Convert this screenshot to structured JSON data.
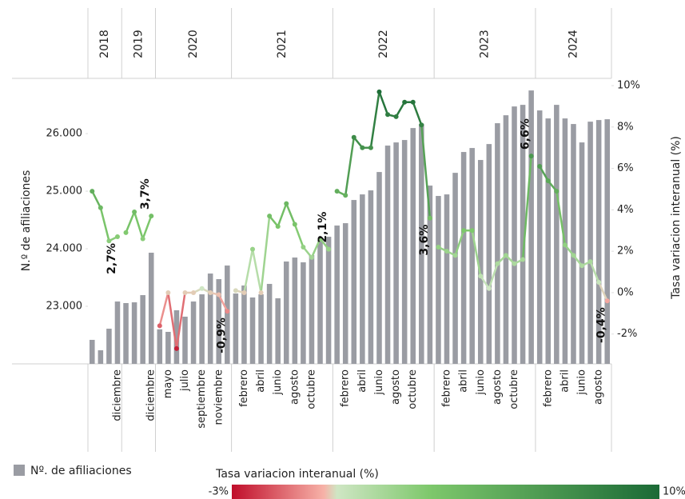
{
  "chart_data": {
    "type": "bar",
    "y_title": "N.º de afiliaciones",
    "groups": [
      {
        "label": "2018",
        "categories": [
          null,
          null,
          null,
          "diciembre"
        ]
      },
      {
        "label": "2019",
        "categories": [
          null,
          null,
          null,
          "diciembre"
        ]
      },
      {
        "label": "2020",
        "categories": [
          null,
          "mayo",
          null,
          "julio",
          null,
          "septiembre",
          null,
          "noviembre",
          null
        ]
      },
      {
        "label": "2021",
        "categories": [
          null,
          "febrero",
          null,
          "abril",
          null,
          "junio",
          null,
          "agosto",
          null,
          "octubre",
          null,
          null
        ]
      },
      {
        "label": "2022",
        "categories": [
          null,
          "febrero",
          null,
          "abril",
          null,
          "junio",
          null,
          "agosto",
          null,
          "octubre",
          null,
          null
        ]
      },
      {
        "label": "2023",
        "categories": [
          null,
          "febrero",
          null,
          "abril",
          null,
          "junio",
          null,
          "agosto",
          null,
          "octubre",
          null,
          null
        ]
      },
      {
        "label": "2024",
        "categories": [
          null,
          "febrero",
          null,
          "abril",
          null,
          "junio",
          null,
          "agosto",
          null
        ]
      }
    ],
    "series": [
      {
        "name": "Nº. de afiliaciones",
        "type": "bar",
        "color": "#9a9ca3",
        "values": [
          22417,
          22236,
          22611,
          23083,
          23056,
          23069,
          23194,
          23931,
          22600,
          22556,
          22931,
          22820,
          23083,
          23208,
          23569,
          23472,
          23708,
          23222,
          23361,
          23153,
          23208,
          23389,
          23139,
          23778,
          23847,
          23764,
          23889,
          24153,
          24208,
          24403,
          24444,
          24847,
          24944,
          25014,
          25333,
          25792,
          25847,
          25889,
          26097,
          26167,
          25097,
          24917,
          24944,
          25319,
          25681,
          25750,
          25542,
          25819,
          26181,
          26319,
          26472,
          26500,
          26750,
          26403,
          26264,
          26500,
          26264,
          26167,
          25847,
          26208,
          26236,
          26250
        ]
      },
      {
        "name": "Tasa variacion interanual (%)",
        "type": "line",
        "axis": "y2",
        "values": [
          4.9,
          4.1,
          2.5,
          2.7,
          2.9,
          3.9,
          2.6,
          3.7,
          -1.6,
          0.0,
          -2.7,
          0.0,
          0.0,
          0.2,
          0.0,
          -0.1,
          -0.9,
          0.1,
          0.0,
          2.1,
          0.0,
          3.7,
          3.2,
          4.3,
          3.3,
          2.2,
          1.7,
          2.6,
          2.1,
          4.9,
          4.7,
          7.5,
          7.0,
          7.0,
          9.7,
          8.6,
          8.5,
          9.2,
          9.2,
          8.1,
          3.6,
          2.2,
          2.0,
          1.8,
          3.0,
          3.0,
          0.8,
          0.2,
          1.4,
          1.8,
          1.4,
          1.6,
          6.6,
          6.1,
          5.4,
          4.9,
          2.3,
          1.8,
          1.3,
          1.5,
          0.5,
          -0.4
        ],
        "value_labels": [
          null,
          null,
          null,
          "2,7%",
          null,
          null,
          null,
          "3,7%",
          null,
          null,
          null,
          null,
          null,
          null,
          null,
          null,
          "-0,9%",
          null,
          null,
          null,
          null,
          null,
          null,
          null,
          null,
          null,
          null,
          null,
          "2,1%",
          null,
          null,
          null,
          null,
          null,
          null,
          null,
          null,
          null,
          null,
          null,
          "3,6%",
          null,
          null,
          null,
          null,
          null,
          null,
          null,
          null,
          null,
          null,
          null,
          "6,6%",
          null,
          null,
          null,
          null,
          null,
          null,
          null,
          null,
          "-0,4%"
        ]
      }
    ],
    "ylim": [
      22000,
      26960
    ],
    "yticks": [
      {
        "value": 23000,
        "label": "23.000"
      },
      {
        "value": 24000,
        "label": "24.000"
      },
      {
        "value": 25000,
        "label": "25.000"
      },
      {
        "value": 26000,
        "label": "26.000"
      }
    ],
    "y2lim": [
      -3.44,
      10.35
    ],
    "y2ticks": [
      {
        "value": -2,
        "label": "-2%"
      },
      {
        "value": 0,
        "label": "0%"
      },
      {
        "value": 2,
        "label": "2%"
      },
      {
        "value": 4,
        "label": "4%"
      },
      {
        "value": 6,
        "label": "6%"
      },
      {
        "value": 8,
        "label": "8%"
      },
      {
        "value": 10,
        "label": "10%"
      }
    ],
    "colorscale": {
      "stops": [
        [
          -3,
          "#c00d2a"
        ],
        [
          -0.2,
          "#f7b2a8"
        ],
        [
          0.2,
          "#cfe6c4"
        ],
        [
          3,
          "#7ec86c"
        ],
        [
          10,
          "#1b6a36"
        ]
      ],
      "ticks": [
        {
          "value": -3,
          "label": "-3%"
        },
        {
          "value": 10,
          "label": "10%"
        }
      ]
    },
    "grid": false
  }
}
